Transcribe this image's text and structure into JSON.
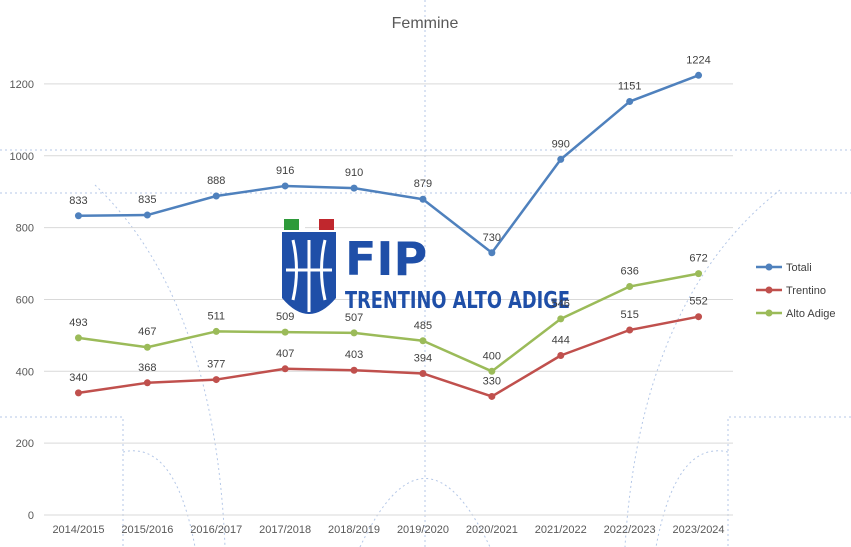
{
  "chart_data": {
    "type": "line",
    "title": "Femmine",
    "xlabel": "",
    "ylabel": "",
    "categories": [
      "2014/2015",
      "2015/2016",
      "2016/2017",
      "2017/2018",
      "2018/2019",
      "2019/2020",
      "2020/2021",
      "2021/2022",
      "2022/2023",
      "2023/2024"
    ],
    "ylim": [
      0,
      1300
    ],
    "yticks": [
      0,
      200,
      400,
      600,
      800,
      1000,
      1200
    ],
    "grid": true,
    "legend_position": "right",
    "series": [
      {
        "name": "Totali",
        "color": "#4f81bd",
        "values": [
          833,
          835,
          888,
          916,
          910,
          879,
          730,
          990,
          1151,
          1224
        ]
      },
      {
        "name": "Trentino",
        "color": "#c0504d",
        "values": [
          340,
          368,
          377,
          407,
          403,
          394,
          330,
          444,
          515,
          552
        ]
      },
      {
        "name": "Alto Adige",
        "color": "#9bbb59",
        "values": [
          493,
          467,
          511,
          509,
          507,
          485,
          400,
          546,
          636,
          672
        ]
      }
    ]
  },
  "logo": {
    "line1": "FIP",
    "line2": "TRENTINO ALTO ADIGE",
    "color": "#1f4fa8"
  }
}
